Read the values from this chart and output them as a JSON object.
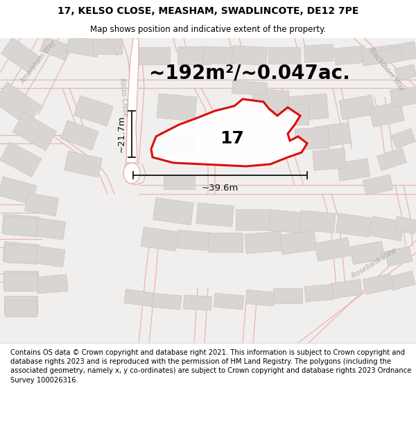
{
  "title_line1": "17, KELSO CLOSE, MEASHAM, SWADLINCOTE, DE12 7PE",
  "title_line2": "Map shows position and indicative extent of the property.",
  "footer_text": "Contains OS data © Crown copyright and database right 2021. This information is subject to Crown copyright and database rights 2023 and is reproduced with the permission of HM Land Registry. The polygons (including the associated geometry, namely x, y co-ordinates) are subject to Crown copyright and database rights 2023 Ordnance Survey 100026316.",
  "area_label": "~192m²/~0.047ac.",
  "number_label": "17",
  "width_label": "~39.6m",
  "height_label": "~21.7m",
  "map_bg": "#f0efed",
  "road_outline_color": "#e8a0a0",
  "building_color": "#d8d5d2",
  "building_edge": "#c8c5c2",
  "plot_edge_color": "#dd0000",
  "dim_line_color": "#111111",
  "title_fontsize": 10,
  "subtitle_fontsize": 8.5,
  "footer_fontsize": 7.2,
  "area_fontsize": 20,
  "number_fontsize": 18,
  "street_label_fontsize": 7
}
